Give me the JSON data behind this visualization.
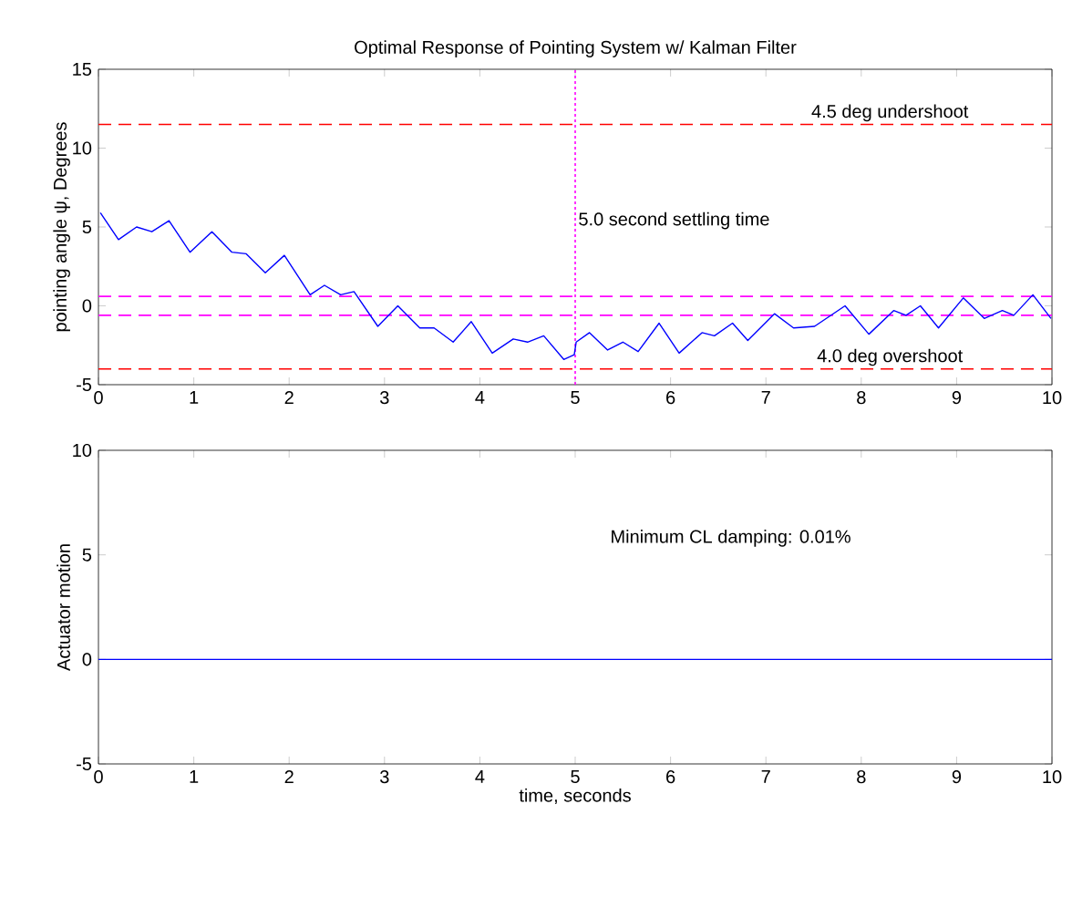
{
  "chart_data": [
    {
      "type": "line",
      "title": "Optimal Response of Pointing System w/ Kalman Filter",
      "ylabel": "pointing angle ψ, Degrees",
      "xlim": [
        0,
        10
      ],
      "ylim": [
        -5,
        15
      ],
      "xticks": [
        0,
        1,
        2,
        3,
        4,
        5,
        6,
        7,
        8,
        9,
        10
      ],
      "yticks": [
        -5,
        0,
        5,
        10,
        15
      ],
      "series": [
        {
          "color": "#0000ff",
          "x": [
            0.02,
            0.21,
            0.4,
            0.56,
            0.74,
            0.96,
            1.19,
            1.4,
            1.55,
            1.75,
            1.95,
            2.22,
            2.37,
            2.54,
            2.68,
            2.93,
            3.14,
            3.37,
            3.52,
            3.72,
            3.91,
            4.13,
            4.35,
            4.5,
            4.67,
            4.88,
            4.99,
            5.01,
            5.15,
            5.34,
            5.5,
            5.66,
            5.88,
            6.09,
            6.33,
            6.46,
            6.65,
            6.81,
            7.09,
            7.29,
            7.51,
            7.83,
            8.08,
            8.34,
            8.47,
            8.62,
            8.81,
            9.07,
            9.29,
            9.48,
            9.6,
            9.8,
            9.99
          ],
          "values": [
            5.9,
            4.2,
            5.0,
            4.7,
            5.4,
            3.4,
            4.7,
            3.4,
            3.3,
            2.1,
            3.2,
            0.7,
            1.3,
            0.7,
            0.9,
            -1.3,
            0.0,
            -1.4,
            -1.4,
            -2.3,
            -1.0,
            -3.0,
            -2.1,
            -2.3,
            -1.9,
            -3.4,
            -3.1,
            -2.3,
            -1.7,
            -2.8,
            -2.3,
            -2.9,
            -1.1,
            -3.0,
            -1.7,
            -1.9,
            -1.1,
            -2.2,
            -0.5,
            -1.4,
            -1.3,
            0.0,
            -1.8,
            -0.3,
            -0.6,
            0.0,
            -1.4,
            0.5,
            -0.8,
            -0.3,
            -0.6,
            0.7,
            -0.8
          ]
        }
      ],
      "ref_lines": [
        {
          "axis": "y",
          "value": 11.5,
          "label": "4.5 deg undershoot",
          "color": "#ff0000",
          "line_style": "dashed"
        },
        {
          "axis": "y",
          "value": -4.0,
          "label": "4.0 deg overshoot",
          "color": "#ff0000",
          "line_style": "dashed"
        },
        {
          "axis": "y",
          "value": 0.6,
          "color": "#ff00ff",
          "line_style": "dashed"
        },
        {
          "axis": "y",
          "value": -0.6,
          "color": "#ff00ff",
          "line_style": "dashed"
        },
        {
          "axis": "x",
          "value": 5,
          "label": "5.0 second settling time",
          "color": "#ff00ff",
          "line_style": "dotted"
        }
      ]
    },
    {
      "type": "line",
      "xlabel": "time, seconds",
      "ylabel": "Actuator motion",
      "xlim": [
        0,
        10
      ],
      "ylim": [
        -5,
        10
      ],
      "xticks": [
        0,
        1,
        2,
        3,
        4,
        5,
        6,
        7,
        8,
        9,
        10
      ],
      "yticks": [
        -5,
        0,
        5,
        10
      ],
      "annotations": [
        "Minimum CL damping: 0.01%"
      ],
      "series": [
        {
          "color": "#0000ff",
          "x": [
            0,
            10
          ],
          "values": [
            0,
            0
          ]
        }
      ]
    }
  ]
}
